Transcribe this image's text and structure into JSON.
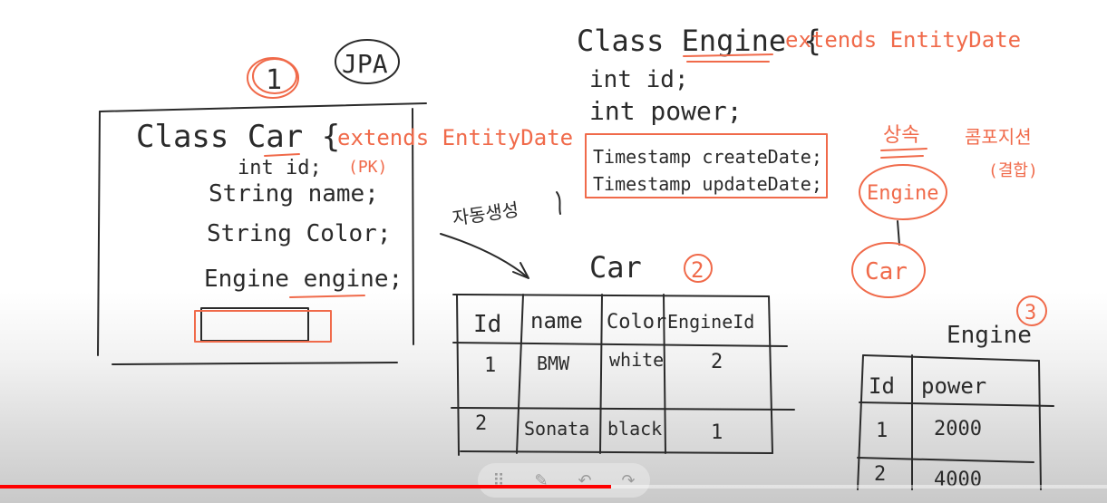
{
  "whiteboard": {
    "marker_1": "1",
    "jpa": "JPA",
    "class_car": "Class Car {",
    "car_extends": "extends EntityDate",
    "car_fields": [
      "int id;",
      "String name;",
      "String Color;",
      "Engine engine;"
    ],
    "car_pk": "(PK)",
    "class_engine": "Class Engine {",
    "engine_extends": "extends EntityDate",
    "engine_fields": [
      "int id;",
      "int power;"
    ],
    "engine_timestamps": [
      "Timestamp createDate;",
      "Timestamp updateDate;"
    ],
    "auto_gen": "자동생성",
    "car_table": {
      "title": "Car",
      "marker": "2",
      "headers": [
        "Id",
        "name",
        "Color",
        "EngineId"
      ],
      "rows": [
        [
          "1",
          "BMW",
          "white",
          "2"
        ],
        [
          "2",
          "Sonata",
          "black",
          "1"
        ]
      ]
    },
    "engine_table": {
      "title": "Engine",
      "marker": "3",
      "headers": [
        "Id",
        "power"
      ],
      "rows": [
        [
          "1",
          "2000"
        ],
        [
          "2",
          "4000"
        ]
      ]
    },
    "inheritance": "상속",
    "composition": "콤포지션",
    "composition_note": "(결합)",
    "node_engine": "Engine",
    "node_car": "Car"
  },
  "player": {
    "progress": 0.552,
    "progress_color": "#ff0000",
    "toolbar_icons": [
      "drag-handle-icon",
      "pen-icon",
      "undo-icon",
      "redo-icon"
    ]
  },
  "colors": {
    "ink": "#2a2a2a",
    "accent": "#f06a4a"
  }
}
